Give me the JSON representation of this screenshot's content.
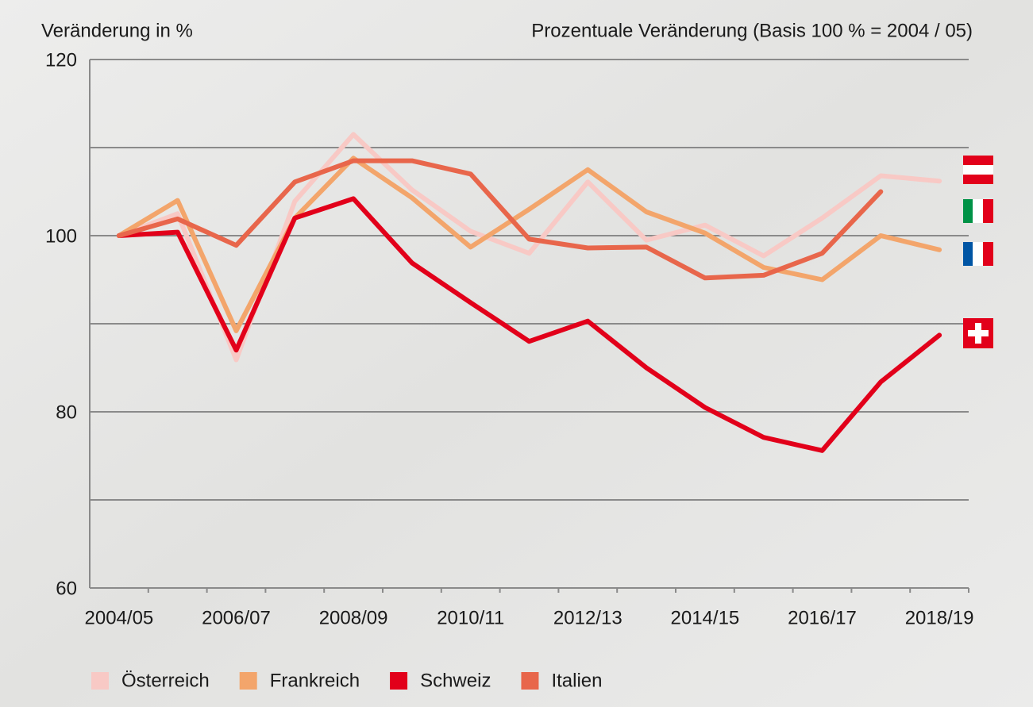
{
  "chart_data": {
    "type": "line",
    "y_label": "Veränderung in %",
    "subtitle": "Prozentuale Veränderung (Basis 100 % = 2004 / 05)",
    "categories": [
      "2004/05",
      null,
      "2006/07",
      null,
      "2008/09",
      null,
      "2010/11",
      null,
      "2012/13",
      null,
      "2014/15",
      null,
      "2016/17",
      null,
      "2018/19"
    ],
    "ylim": [
      60,
      120
    ],
    "yticks": [
      60,
      {
        "value": 70,
        "label": null
      },
      80,
      {
        "value": 90,
        "label": null
      },
      100,
      {
        "value": 110,
        "label": null
      },
      120
    ],
    "grid": true,
    "legend": "bottom",
    "series": [
      {
        "name": "Österreich",
        "color": "#f8c9c5",
        "values": [
          100,
          102.5,
          85.9,
          103.9,
          111.5,
          105.2,
          100.5,
          98,
          106.1,
          99.5,
          101.2,
          97.7,
          102,
          106.8,
          106.2
        ]
      },
      {
        "name": "Frankreich",
        "color": "#f3a56b",
        "values": [
          100,
          104,
          89.2,
          102,
          108.8,
          104.3,
          98.7,
          103,
          107.5,
          102.7,
          100.3,
          96.4,
          95,
          100,
          98.4
        ]
      },
      {
        "name": "Schweiz",
        "color": "#e2001a",
        "values": [
          100,
          100.4,
          87,
          102,
          104.2,
          96.9,
          92.4,
          88,
          90.3,
          85,
          80.5,
          77.1,
          75.6,
          83.4,
          88.7
        ]
      },
      {
        "name": "Italien",
        "color": "#e8664b",
        "values": [
          100,
          101.9,
          98.9,
          106.1,
          108.5,
          108.5,
          107,
          99.6,
          98.6,
          98.7,
          95.2,
          95.5,
          98,
          105,
          null
        ]
      }
    ]
  }
}
